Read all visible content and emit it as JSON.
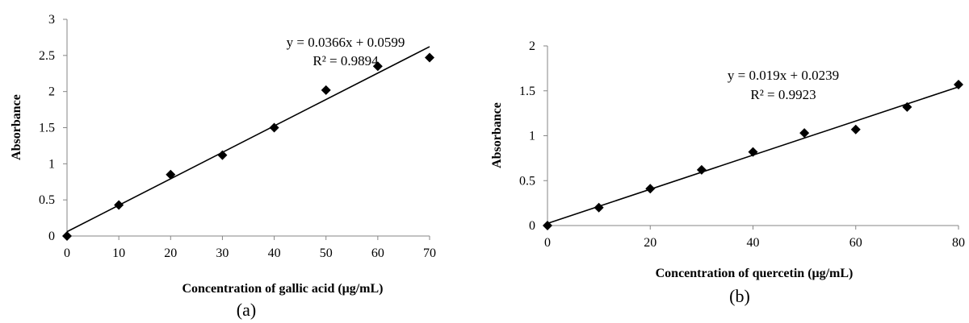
{
  "chart_data": [
    {
      "type": "scatter",
      "panel_label": "(a)",
      "xlabel": "Concentration of gallic acid (μg/mL)",
      "ylabel": "Absorbance",
      "xlim": [
        0,
        70
      ],
      "ylim": [
        0,
        3
      ],
      "xticks": [
        0,
        10,
        20,
        30,
        40,
        50,
        60,
        70
      ],
      "yticks": [
        0,
        0.5,
        1,
        1.5,
        2,
        2.5,
        3
      ],
      "x": [
        0,
        10,
        20,
        30,
        40,
        50,
        60,
        70
      ],
      "y": [
        0,
        0.43,
        0.85,
        1.12,
        1.5,
        2.02,
        2.35,
        2.47
      ],
      "trendline": {
        "slope": 0.0366,
        "intercept": 0.0599
      },
      "equation": "y = 0.0366x + 0.0599",
      "r2": "R² = 0.9894",
      "grid": false,
      "marker": "diamond",
      "marker_color": "#000000"
    },
    {
      "type": "scatter",
      "panel_label": "(b)",
      "xlabel": "Concentration of quercetin (μg/mL)",
      "ylabel": "Absorbance",
      "xlim": [
        0,
        80
      ],
      "ylim": [
        0,
        2
      ],
      "xticks": [
        0,
        20,
        40,
        60,
        80
      ],
      "yticks": [
        0,
        0.5,
        1,
        1.5,
        2
      ],
      "x": [
        0,
        10,
        20,
        30,
        40,
        50,
        60,
        70,
        80
      ],
      "y": [
        0,
        0.2,
        0.41,
        0.62,
        0.82,
        1.03,
        1.07,
        1.32,
        1.57
      ],
      "trendline": {
        "slope": 0.019,
        "intercept": 0.0239
      },
      "equation": "y = 0.019x + 0.0239",
      "r2": "R² = 0.9923",
      "grid": false,
      "marker": "diamond",
      "marker_color": "#000000"
    }
  ]
}
